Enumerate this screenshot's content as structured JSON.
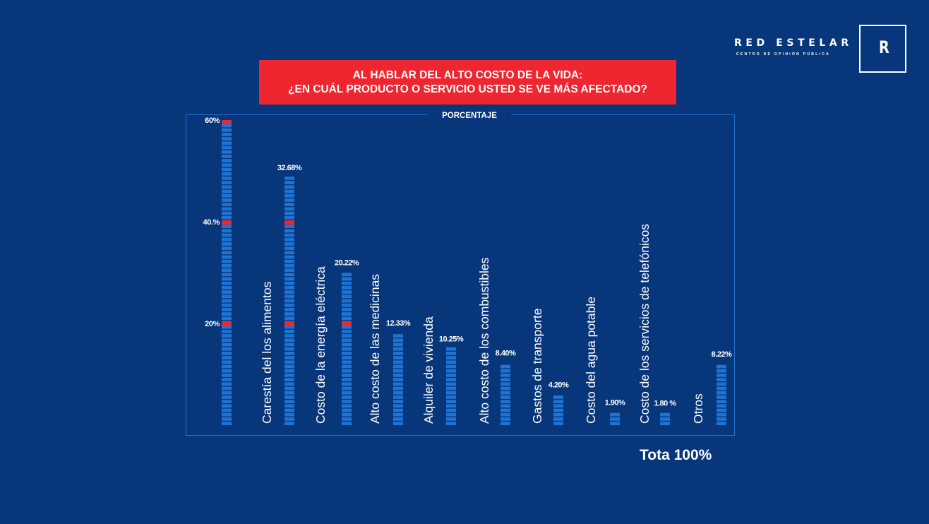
{
  "brand": {
    "name": "RED ESTELAR",
    "subtitle": "CENTRO DE OPINIÓN PÚBLICA",
    "logo_letter": "R"
  },
  "header": {
    "title_line1": "AL HABLAR DEL ALTO COSTO DE LA VIDA:",
    "title_line2": "¿EN  CUÁL PRODUCTO O SERVICIO USTED SE VE MÁS AFECTADO?"
  },
  "colors": {
    "background": "#07367a",
    "bar": "#1f73d2",
    "highlight": "#ed2630",
    "frame": "#1e6fd0"
  },
  "chart_data": {
    "type": "bar",
    "frame_label": "PORCENTAJE",
    "ylim": [
      0,
      60
    ],
    "scale_ticks": [
      {
        "value": 60,
        "label": "60%"
      },
      {
        "value": 40,
        "label": "40.%"
      },
      {
        "value": 20,
        "label": "20%"
      }
    ],
    "categories": [
      "Carestía del los alimentos",
      "Costo de la energía eléctrica",
      "Alto costo de las medicinas",
      "Alquiler de vivienda",
      "Alto costo de los combustibles",
      "Gastos de transporte",
      "Costo del agua potable",
      "Costo de los servicios de telefónicos",
      "Otros"
    ],
    "values": [
      32.68,
      20.22,
      12.33,
      10.25,
      8.4,
      4.2,
      1.9,
      1.8,
      8.22
    ],
    "value_labels": [
      "32.68%",
      "20.22%",
      "12.33%",
      "10.25%",
      "8.40%",
      "4.20%",
      "1.90%",
      "1.80 %",
      "8.22%"
    ],
    "total_label": "Tota 100%"
  }
}
